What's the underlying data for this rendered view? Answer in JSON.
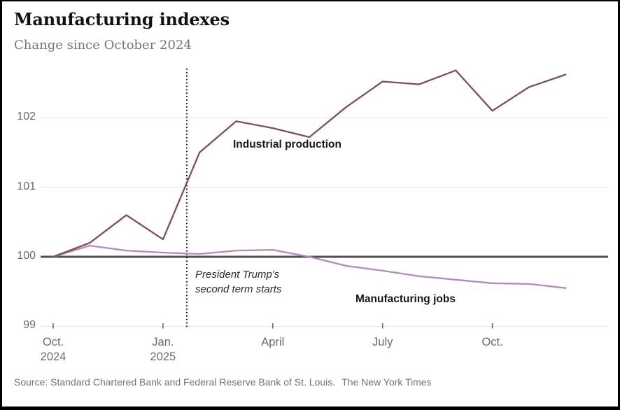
{
  "header": {
    "title": "Manufacturing indexes",
    "subtitle": "Change since October 2024"
  },
  "chart_data": {
    "type": "line",
    "x": [
      "Oct. 2024",
      "Nov. 2024",
      "Dec. 2024",
      "Jan. 2025",
      "Feb. 2025",
      "Mar. 2025",
      "Apr. 2025",
      "May 2025",
      "Jun. 2025",
      "Jul. 2025",
      "Aug. 2025",
      "Sep. 2025",
      "Oct. 2025",
      "Nov. 2025",
      "Dec. 2025"
    ],
    "series": [
      {
        "name": "Industrial production",
        "color": "#7d4e5b",
        "values": [
          100,
          100.2,
          100.6,
          100.25,
          101.5,
          101.95,
          101.85,
          101.72,
          102.15,
          102.52,
          102.48,
          102.68,
          102.1,
          102.44,
          102.62
        ]
      },
      {
        "name": "Manufacturing jobs",
        "color": "#b28abc",
        "values": [
          100,
          100.16,
          100.09,
          100.06,
          100.04,
          100.09,
          100.1,
          100,
          99.87,
          99.8,
          99.72,
          99.67,
          99.62,
          99.61,
          99.55
        ]
      }
    ],
    "title": "Manufacturing indexes",
    "subtitle": "Change since October 2024",
    "ylim": [
      99,
      102.85
    ],
    "yticks": [
      99,
      100,
      101,
      102
    ],
    "baseline_value": 100,
    "index_base": 100,
    "grid": "horizontal",
    "legend_position": "inline-labels",
    "xticks": [
      {
        "index": 0,
        "line1": "Oct.",
        "line2": "2024"
      },
      {
        "index": 3,
        "line1": "Jan.",
        "line2": "2025"
      },
      {
        "index": 6,
        "line1": "April",
        "line2": ""
      },
      {
        "index": 9,
        "line1": "July",
        "line2": ""
      },
      {
        "index": 12,
        "line1": "Oct.",
        "line2": ""
      }
    ],
    "annotation": {
      "x_index": 3.65,
      "line1": "President Trump's",
      "line2": "second term starts"
    }
  },
  "colors": {
    "industrial_line": "#7d4e5b",
    "jobs_line": "#b28abc",
    "baseline": "#4f4f4f",
    "gridline": "#e3e3e3",
    "dotted_marker": "#1a1a1a",
    "axis_text": "#6b6b6b"
  },
  "footer": {
    "source": "Source: Standard Chartered Bank and Federal Reserve Bank of St. Louis.",
    "credit": "The New York Times"
  }
}
